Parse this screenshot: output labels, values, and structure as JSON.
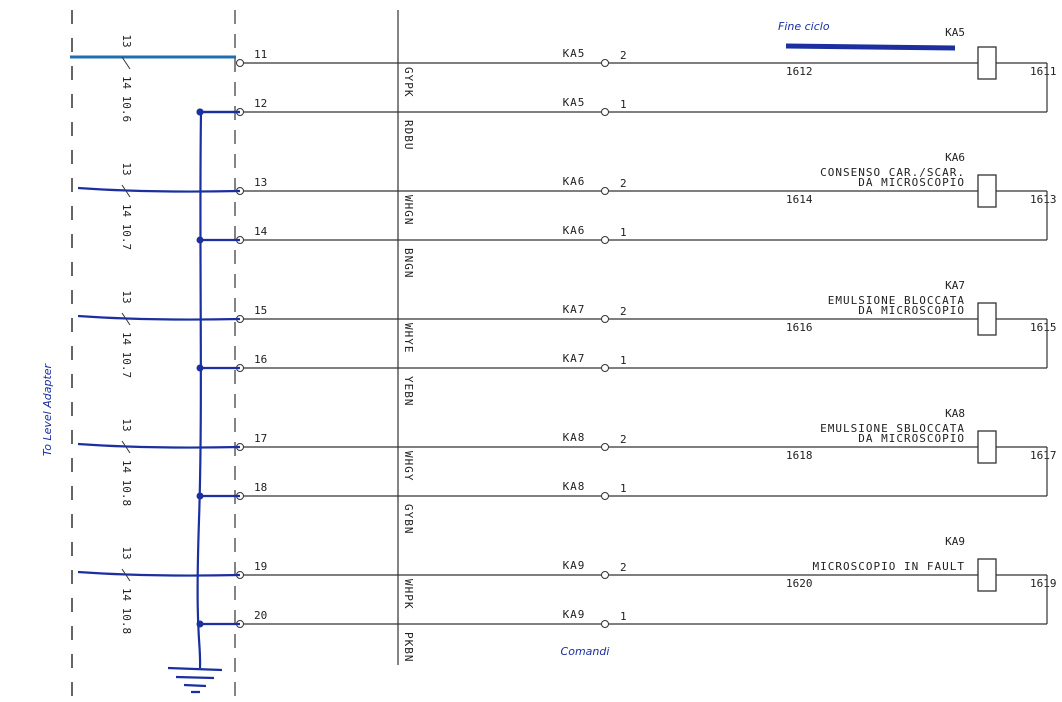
{
  "side_label": "To Level Adapter",
  "footer_label": "Comandi",
  "groups": [
    {
      "ref_a": "13",
      "ref_b": "14 10.6",
      "relay": "KA5",
      "note": "Fine ciclo",
      "coil_left": "1612",
      "coil_right": "1611",
      "lines": [
        {
          "terminal": "11",
          "wire": "GYPK",
          "contact": "KA5",
          "pin": "2"
        },
        {
          "terminal": "12",
          "wire": "RDBU",
          "contact": "KA5",
          "pin": "1"
        }
      ]
    },
    {
      "ref_a": "13",
      "ref_b": "14 10.7",
      "relay": "KA6",
      "description": [
        "CONSENSO CAR./SCAR.",
        "DA MICROSCOPIO"
      ],
      "coil_left": "1614",
      "coil_right": "1613",
      "lines": [
        {
          "terminal": "13",
          "wire": "WHGN",
          "contact": "KA6",
          "pin": "2"
        },
        {
          "terminal": "14",
          "wire": "BNGN",
          "contact": "KA6",
          "pin": "1"
        }
      ]
    },
    {
      "ref_a": "13",
      "ref_b": "14 10.7",
      "relay": "KA7",
      "description": [
        "EMULSIONE BLOCCATA",
        "DA MICROSCOPIO"
      ],
      "coil_left": "1616",
      "coil_right": "1615",
      "lines": [
        {
          "terminal": "15",
          "wire": "WHYE",
          "contact": "KA7",
          "pin": "2"
        },
        {
          "terminal": "16",
          "wire": "YEBN",
          "contact": "KA7",
          "pin": "1"
        }
      ]
    },
    {
      "ref_a": "13",
      "ref_b": "14 10.8",
      "relay": "KA8",
      "description": [
        "EMULSIONE SBLOCCATA",
        "DA MICROSCOPIO"
      ],
      "coil_left": "1618",
      "coil_right": "1617",
      "lines": [
        {
          "terminal": "17",
          "wire": "WHGY",
          "contact": "KA8",
          "pin": "2"
        },
        {
          "terminal": "18",
          "wire": "GYBN",
          "contact": "KA8",
          "pin": "1"
        }
      ]
    },
    {
      "ref_a": "13",
      "ref_b": "14 10.8",
      "relay": "KA9",
      "description": [
        "MICROSCOPIO IN FAULT"
      ],
      "coil_left": "1620",
      "coil_right": "1619",
      "lines": [
        {
          "terminal": "19",
          "wire": "WHPK",
          "contact": "KA9",
          "pin": "2"
        },
        {
          "terminal": "20",
          "wire": "PKBN",
          "contact": "KA9",
          "pin": "1"
        }
      ]
    }
  ]
}
